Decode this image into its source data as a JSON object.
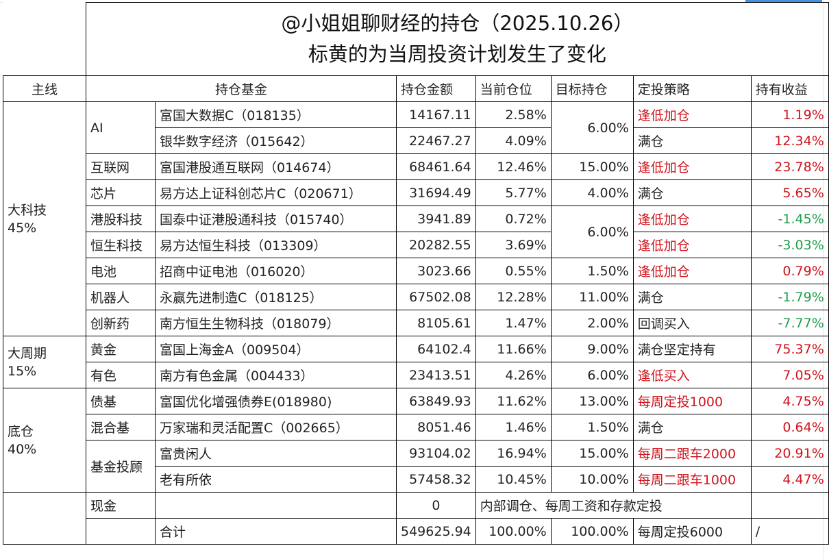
{
  "title": "@小姐姐聊财经的持仓（2025.10.26）",
  "subtitle": "标黄的为当周投资计划发生了变化",
  "headers": [
    "主线",
    "持仓基金",
    "持仓金额",
    "当前仓位",
    "目标持仓",
    "定投策略",
    "持有收益"
  ],
  "groups": {
    "tech": {
      "name": "大科技",
      "pct": "45%"
    },
    "cycle": {
      "name": "大周期",
      "pct": "15%"
    },
    "base": {
      "name": "底仓",
      "pct": "40%"
    }
  },
  "rows": [
    {
      "sub": "AI",
      "fund": "富国大数据C（018135）",
      "amount": "14167.11",
      "position": "2.58%",
      "target": "6.00%",
      "strategy": "逢低加仓",
      "return": "1.19%"
    },
    {
      "sub": "",
      "fund": "银华数字经济（015642）",
      "amount": "22467.27",
      "position": "4.09%",
      "target": "",
      "strategy": "满仓",
      "return": "12.34%"
    },
    {
      "sub": "互联网",
      "fund": "富国港股通互联网（014674）",
      "amount": "68461.64",
      "position": "12.46%",
      "target": "15.00%",
      "strategy": "逢低加仓",
      "return": "23.78%"
    },
    {
      "sub": "芯片",
      "fund": "易方达上证科创芯片C（020671）",
      "amount": "31694.49",
      "position": "5.77%",
      "target": "4.00%",
      "strategy": "满仓",
      "return": "5.65%"
    },
    {
      "sub": "港股科技",
      "fund": "国泰中证港股通科技（015740）",
      "amount": "3941.89",
      "position": "0.72%",
      "target": "6.00%",
      "strategy": "逢低加仓",
      "return": "-1.45%"
    },
    {
      "sub": "恒生科技",
      "fund": "易方达恒生科技（013309）",
      "amount": "20282.55",
      "position": "3.69%",
      "target": "",
      "strategy": "逢低加仓",
      "return": "-3.03%"
    },
    {
      "sub": "电池",
      "fund": "招商中证电池（016020）",
      "amount": "3023.66",
      "position": "0.55%",
      "target": "1.50%",
      "strategy": "逢低加仓",
      "return": "0.79%"
    },
    {
      "sub": "机器人",
      "fund": "永赢先进制造C（018125）",
      "amount": "67502.08",
      "position": "12.28%",
      "target": "11.00%",
      "strategy": "满仓",
      "return": "-1.79%"
    },
    {
      "sub": "创新药",
      "fund": "南方恒生生物科技（018079）",
      "amount": "8105.61",
      "position": "1.47%",
      "target": "2.00%",
      "strategy": "回调买入",
      "return": "-7.77%"
    },
    {
      "sub": "黄金",
      "fund": "富国上海金A（009504）",
      "amount": "64102.4",
      "position": "11.66%",
      "target": "9.00%",
      "strategy": "满仓坚定持有",
      "return": "75.37%"
    },
    {
      "sub": "有色",
      "fund": "南方有色金属（004433）",
      "amount": "23413.51",
      "position": "4.26%",
      "target": "6.00%",
      "strategy": "逢低买入",
      "return": "7.05%"
    },
    {
      "sub": "债基",
      "fund": "富国优化增强债券E(018980)",
      "amount": "63849.93",
      "position": "11.62%",
      "target": "13.00%",
      "strategy": "每周定投1000",
      "return": "4.75%"
    },
    {
      "sub": "混合基",
      "fund": "万家瑞和灵活配置C（002665）",
      "amount": "8051.46",
      "position": "1.46%",
      "target": "1.50%",
      "strategy": "满仓",
      "return": "0.64%"
    },
    {
      "sub": "基金投顾",
      "fund": "富贵闲人",
      "amount": "93104.02",
      "position": "16.94%",
      "target": "15.00%",
      "strategy": "每周二跟车2000",
      "return": "20.91%"
    },
    {
      "sub": "",
      "fund": "老有所依",
      "amount": "57458.32",
      "position": "10.45%",
      "target": "10.00%",
      "strategy": "每周二跟车1000",
      "return": "4.47%"
    }
  ],
  "cash": {
    "label": "现金",
    "amount": "0",
    "note": "内部调仓、每周工资和存款定投"
  },
  "total": {
    "label": "合计",
    "amount": "549625.94",
    "position": "100.00%",
    "target": "100.00%",
    "strategy": "每周定投6000",
    "return": "/"
  },
  "colors": {
    "negative_return": "#1f9e4a",
    "positive_return": "#d0121b",
    "highlight_strategy": "#d0121b",
    "selection": "#4a90e2"
  }
}
